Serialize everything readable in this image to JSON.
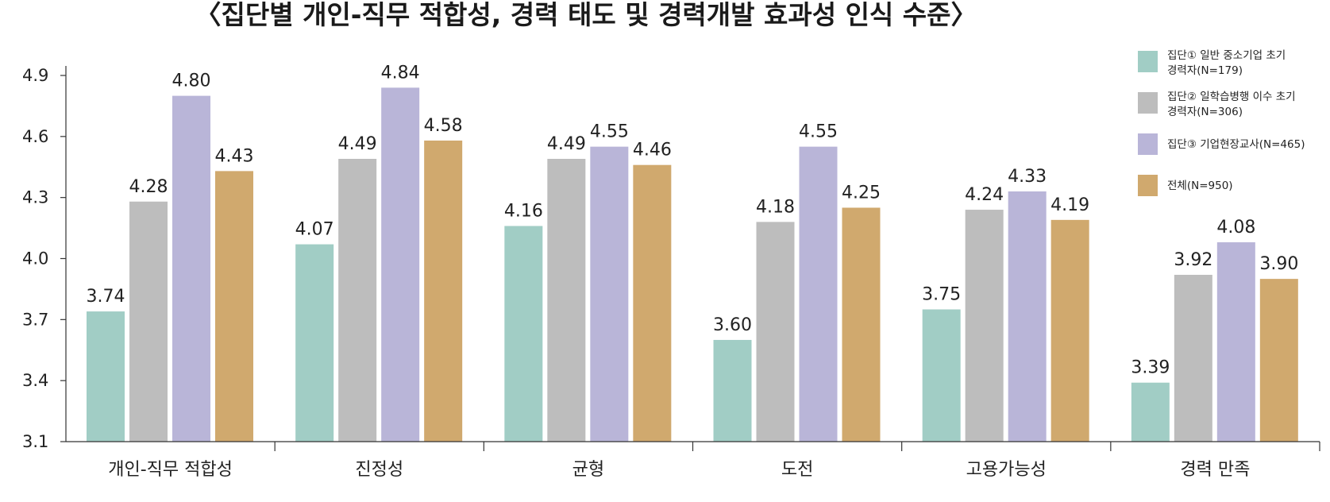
{
  "chart_data": {
    "type": "bar",
    "title": "〈집단별 개인-직무 적합성, 경력 태도 및 경력개발 효과성 인식 수준〉",
    "xlabel": "",
    "ylabel": "",
    "categories": [
      "개인-직무 적합성",
      "진정성",
      "균형",
      "도전",
      "고용가능성",
      "경력 만족"
    ],
    "ylim": [
      3.1,
      4.9
    ],
    "yticks": [
      "3.1",
      "3.4",
      "3.7",
      "4.0",
      "4.3",
      "4.6",
      "4.9"
    ],
    "grid": false,
    "legend_position": "top-right",
    "series": [
      {
        "name": "집단① 일반 중소기업 초기 경력자(N=179)",
        "legend_lines": [
          "집단① 일반 중소기업 초기",
          "경력자(N=179)"
        ],
        "color": "#a1cdc5",
        "values": [
          3.74,
          4.07,
          4.16,
          3.6,
          3.75,
          3.39
        ]
      },
      {
        "name": "집단② 일학습병행 이수 초기 경력자(N=306)",
        "legend_lines": [
          "집단② 일학습병행 이수 초기",
          "경력자(N=306)"
        ],
        "color": "#bdbdbd",
        "values": [
          4.28,
          4.49,
          4.49,
          4.18,
          4.24,
          3.92
        ]
      },
      {
        "name": "집단③ 기업현장교사(N=465)",
        "legend_lines": [
          "집단③ 기업현장교사(N=465)"
        ],
        "color": "#b9b5d8",
        "values": [
          4.8,
          4.84,
          4.55,
          4.55,
          4.33,
          4.08
        ]
      },
      {
        "name": "전체(N=950)",
        "legend_lines": [
          "전체(N=950)"
        ],
        "color": "#d0a96e",
        "values": [
          4.43,
          4.58,
          4.46,
          4.25,
          4.19,
          3.9
        ]
      }
    ]
  }
}
